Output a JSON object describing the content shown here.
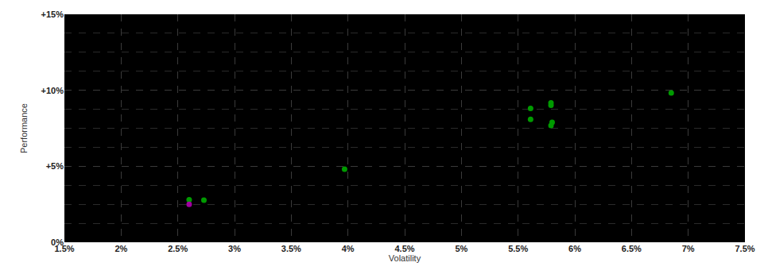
{
  "chart_data": {
    "type": "scatter",
    "x_label": "Volatility",
    "y_label": "Performance",
    "xlim": [
      1.5,
      7.5
    ],
    "xticks": [
      {
        "value": 1.5,
        "label": "1.5%"
      },
      {
        "value": 2,
        "label": "2%"
      },
      {
        "value": 2.5,
        "label": "2.5%"
      },
      {
        "value": 3,
        "label": "3%"
      },
      {
        "value": 3.5,
        "label": "3.5%"
      },
      {
        "value": 4,
        "label": "4%"
      },
      {
        "value": 4.5,
        "label": "4.5%"
      },
      {
        "value": 5,
        "label": "5%"
      },
      {
        "value": 5.5,
        "label": "5.5%"
      },
      {
        "value": 6,
        "label": "6%"
      },
      {
        "value": 6.5,
        "label": "6.5%"
      },
      {
        "value": 7,
        "label": "7%"
      },
      {
        "value": 7.5,
        "label": "7.5%"
      }
    ],
    "ylim": [
      0,
      15
    ],
    "yticks": [
      {
        "value": 0,
        "label": "0%"
      },
      {
        "value": 5,
        "label": "+5%"
      },
      {
        "value": 10,
        "label": "+10%"
      },
      {
        "value": 15,
        "label": "+15%"
      }
    ],
    "grid": true,
    "series": [
      {
        "color": "#009a00",
        "marker": "circle",
        "x": [
          2.6,
          2.73,
          3.97,
          5.61,
          5.61,
          5.79,
          5.79,
          5.8,
          5.79,
          6.85
        ],
        "values": [
          2.8,
          2.77,
          4.81,
          8.81,
          8.09,
          9.17,
          9.01,
          7.89,
          7.68,
          9.83
        ]
      },
      {
        "color": "#a000a0",
        "marker": "circle",
        "x": [
          2.6
        ],
        "values": [
          2.5
        ]
      }
    ]
  }
}
